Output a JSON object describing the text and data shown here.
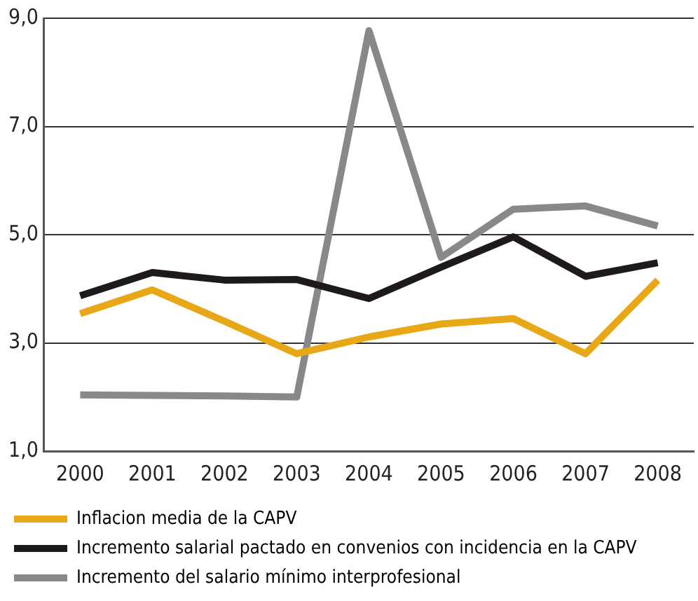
{
  "chart_data": {
    "type": "line",
    "categories": [
      "2000",
      "2001",
      "2002",
      "2003",
      "2004",
      "2005",
      "2006",
      "2007",
      "2008"
    ],
    "series": [
      {
        "name": "Inflacion media de la CAPV",
        "color": "#e8a717",
        "values": [
          3.54,
          3.98,
          3.4,
          2.8,
          3.11,
          3.35,
          3.45,
          2.8,
          4.16
        ]
      },
      {
        "name": "Incremento salarial pactado en convenios con incidencia en la CAPV",
        "color": "#1e1a1a",
        "values": [
          3.87,
          4.3,
          4.16,
          4.17,
          3.82,
          4.4,
          4.96,
          4.23,
          4.48
        ]
      },
      {
        "name": "Incremento del salario mínimo interprofesional",
        "color": "#888888",
        "values": [
          2.04,
          2.03,
          2.02,
          2.0,
          8.77,
          4.58,
          5.47,
          5.53,
          5.16
        ]
      }
    ],
    "ylim": [
      1,
      9
    ],
    "yticks": [
      {
        "value": 1,
        "label": "1,0"
      },
      {
        "value": 3,
        "label": "3,0"
      },
      {
        "value": 5,
        "label": "5,0"
      },
      {
        "value": 7,
        "label": "7,0"
      },
      {
        "value": 9,
        "label": "9,0"
      }
    ],
    "grid": "y",
    "legend": "bottom",
    "marker": "none",
    "line_style": "solid"
  }
}
